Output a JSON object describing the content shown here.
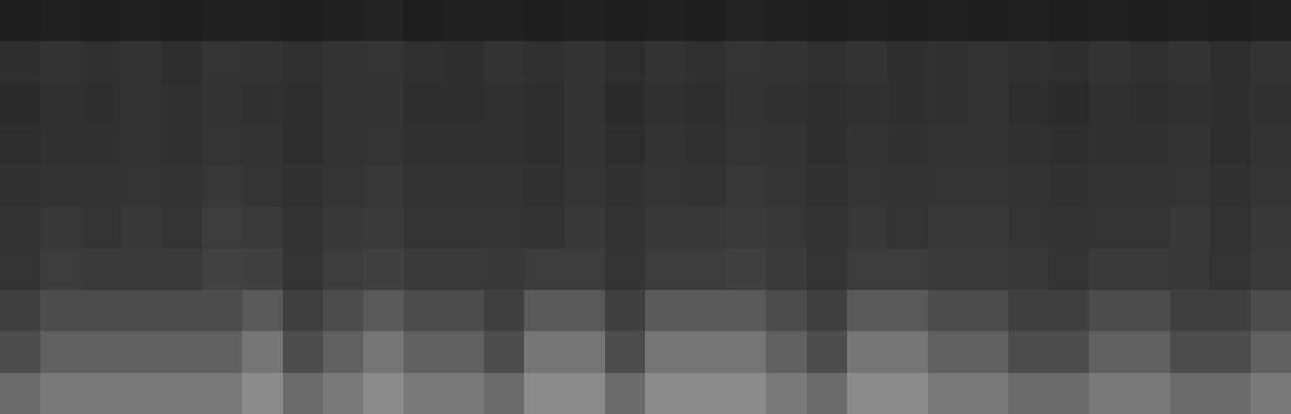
{
  "chart_data": {
    "type": "heatmap",
    "color": "gray",
    "tick_labels": false,
    "grid": false,
    "value_range": [
      0,
      1
    ],
    "cells": [
      [
        0.12,
        0.13,
        0.12,
        0.13,
        0.12,
        0.13,
        0.13,
        0.12,
        0.13,
        0.14,
        0.12,
        0.13,
        0.13,
        0.12,
        0.13,
        0.12,
        0.13,
        0.12,
        0.14,
        0.13,
        0.12,
        0.13,
        0.12,
        0.13,
        0.12,
        0.13,
        0.12,
        0.13,
        0.12,
        0.13,
        0.12,
        0.13
      ],
      [
        0.18,
        0.2,
        0.19,
        0.2,
        0.18,
        0.21,
        0.2,
        0.19,
        0.2,
        0.21,
        0.19,
        0.18,
        0.2,
        0.19,
        0.2,
        0.18,
        0.2,
        0.19,
        0.21,
        0.2,
        0.19,
        0.2,
        0.18,
        0.19,
        0.2,
        0.19,
        0.18,
        0.2,
        0.19,
        0.2,
        0.18,
        0.2
      ],
      [
        0.17,
        0.19,
        0.18,
        0.2,
        0.19,
        0.2,
        0.19,
        0.18,
        0.2,
        0.2,
        0.18,
        0.18,
        0.19,
        0.18,
        0.2,
        0.17,
        0.19,
        0.18,
        0.2,
        0.19,
        0.18,
        0.19,
        0.18,
        0.19,
        0.2,
        0.18,
        0.17,
        0.19,
        0.18,
        0.19,
        0.18,
        0.19
      ],
      [
        0.18,
        0.19,
        0.19,
        0.2,
        0.19,
        0.21,
        0.2,
        0.18,
        0.2,
        0.21,
        0.19,
        0.19,
        0.19,
        0.18,
        0.2,
        0.18,
        0.2,
        0.19,
        0.21,
        0.2,
        0.18,
        0.2,
        0.19,
        0.2,
        0.2,
        0.19,
        0.18,
        0.19,
        0.19,
        0.2,
        0.18,
        0.2
      ],
      [
        0.19,
        0.2,
        0.2,
        0.21,
        0.2,
        0.22,
        0.21,
        0.19,
        0.21,
        0.22,
        0.2,
        0.2,
        0.2,
        0.19,
        0.21,
        0.19,
        0.21,
        0.2,
        0.22,
        0.21,
        0.19,
        0.21,
        0.2,
        0.21,
        0.21,
        0.2,
        0.19,
        0.2,
        0.2,
        0.21,
        0.19,
        0.21
      ],
      [
        0.2,
        0.22,
        0.21,
        0.22,
        0.21,
        0.24,
        0.23,
        0.2,
        0.22,
        0.23,
        0.21,
        0.21,
        0.21,
        0.2,
        0.22,
        0.2,
        0.22,
        0.22,
        0.23,
        0.22,
        0.2,
        0.22,
        0.21,
        0.22,
        0.22,
        0.21,
        0.2,
        0.21,
        0.21,
        0.22,
        0.2,
        0.22
      ],
      [
        0.21,
        0.24,
        0.23,
        0.23,
        0.23,
        0.26,
        0.25,
        0.21,
        0.24,
        0.25,
        0.23,
        0.23,
        0.22,
        0.24,
        0.24,
        0.21,
        0.24,
        0.24,
        0.25,
        0.23,
        0.21,
        0.24,
        0.24,
        0.23,
        0.23,
        0.22,
        0.21,
        0.23,
        0.23,
        0.22,
        0.21,
        0.23
      ],
      [
        0.25,
        0.3,
        0.3,
        0.3,
        0.3,
        0.3,
        0.35,
        0.25,
        0.3,
        0.35,
        0.3,
        0.3,
        0.25,
        0.35,
        0.35,
        0.25,
        0.35,
        0.35,
        0.35,
        0.3,
        0.25,
        0.35,
        0.35,
        0.3,
        0.3,
        0.25,
        0.25,
        0.3,
        0.3,
        0.25,
        0.25,
        0.3
      ],
      [
        0.3,
        0.38,
        0.38,
        0.38,
        0.38,
        0.38,
        0.46,
        0.3,
        0.38,
        0.46,
        0.38,
        0.38,
        0.3,
        0.46,
        0.46,
        0.3,
        0.46,
        0.46,
        0.46,
        0.38,
        0.3,
        0.46,
        0.46,
        0.38,
        0.38,
        0.3,
        0.3,
        0.38,
        0.38,
        0.3,
        0.3,
        0.38
      ],
      [
        0.42,
        0.48,
        0.48,
        0.48,
        0.48,
        0.48,
        0.54,
        0.42,
        0.48,
        0.54,
        0.48,
        0.48,
        0.42,
        0.54,
        0.54,
        0.42,
        0.54,
        0.54,
        0.54,
        0.48,
        0.42,
        0.54,
        0.54,
        0.48,
        0.48,
        0.42,
        0.42,
        0.48,
        0.48,
        0.42,
        0.42,
        0.48
      ]
    ]
  }
}
